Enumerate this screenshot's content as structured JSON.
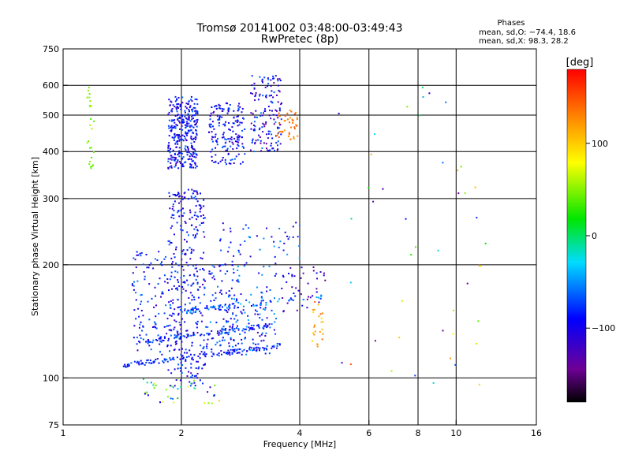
{
  "chart_data": {
    "type": "scatter",
    "title": "Tromsø 20141002 03:48:00-03:49:43",
    "subtitle": "RwPretec (8p)",
    "stats": {
      "heading": "Phases",
      "line1": "mean, sd,O: −74.4, 18.6",
      "line2": "mean, sd,X:  98.3, 28.2"
    },
    "xlabel": "Frequency [MHz]",
    "ylabel": "Stationary phase Virtual Height [km]",
    "xscale": "log",
    "yscale": "log",
    "xlim": [
      1,
      16
    ],
    "ylim": [
      75,
      750
    ],
    "xticks": [
      1,
      2,
      4,
      6,
      8,
      10,
      16
    ],
    "yticks": [
      75,
      100,
      200,
      300,
      400,
      500,
      600,
      750
    ],
    "grid_x": [
      2,
      4,
      6,
      8,
      10
    ],
    "grid_y": [
      100,
      200,
      300,
      400,
      500,
      600
    ],
    "colorbar": {
      "label": "[deg]",
      "range": [
        -180,
        180
      ],
      "ticks": [
        -100,
        0,
        100
      ]
    },
    "point_clusters": [
      {
        "fmin": 1.85,
        "fmax": 2.2,
        "hmin": 360,
        "hmax": 560,
        "n": 320,
        "cmin": -125,
        "cmax": -60
      },
      {
        "fmin": 2.35,
        "fmax": 2.9,
        "hmin": 370,
        "hmax": 540,
        "n": 170,
        "cmin": -125,
        "cmax": -60
      },
      {
        "fmin": 3.0,
        "fmax": 3.6,
        "hmin": 400,
        "hmax": 640,
        "n": 150,
        "cmin": -145,
        "cmax": -50
      },
      {
        "fmin": 3.5,
        "fmax": 4.0,
        "hmin": 430,
        "hmax": 520,
        "n": 40,
        "cmin": 120,
        "cmax": 150
      },
      {
        "fmin": 1.85,
        "fmax": 2.3,
        "hmin": 95,
        "hmax": 320,
        "n": 320,
        "cmin": -125,
        "cmax": -60
      },
      {
        "fmin": 1.5,
        "fmax": 2.0,
        "hmin": 115,
        "hmax": 220,
        "n": 140,
        "cmin": -125,
        "cmax": -55
      },
      {
        "fmin": 2.3,
        "fmax": 2.8,
        "hmin": 115,
        "hmax": 200,
        "n": 110,
        "cmin": -120,
        "cmax": -50
      },
      {
        "fmin": 2.6,
        "fmax": 3.5,
        "hmin": 115,
        "hmax": 175,
        "n": 100,
        "cmin": -120,
        "cmax": -40
      },
      {
        "fmin": 2.5,
        "fmax": 4.0,
        "hmin": 185,
        "hmax": 260,
        "n": 70,
        "cmin": -120,
        "cmax": -40
      },
      {
        "fmin": 3.6,
        "fmax": 4.8,
        "hmin": 150,
        "hmax": 200,
        "n": 35,
        "cmin": -150,
        "cmax": -80
      },
      {
        "fmin": 4.3,
        "fmax": 4.6,
        "hmin": 120,
        "hmax": 160,
        "n": 25,
        "cmin": 90,
        "cmax": 150
      },
      {
        "fmin": 1.15,
        "fmax": 1.2,
        "hmin": 350,
        "hmax": 600,
        "n": 25,
        "cmin": 30,
        "cmax": 60
      },
      {
        "fmin": 5.0,
        "fmax": 12.0,
        "hmin": 95,
        "hmax": 680,
        "n": 45,
        "cmin": -160,
        "cmax": 150
      },
      {
        "fmin": 1.6,
        "fmax": 2.5,
        "hmin": 85,
        "hmax": 100,
        "n": 40,
        "cmin": -120,
        "cmax": 100
      }
    ],
    "point_lines": [
      {
        "f0": 1.42,
        "h0": 108,
        "f1": 3.6,
        "h1": 122,
        "n": 120,
        "cmin": -110,
        "cmax": -60
      },
      {
        "f0": 1.6,
        "h0": 125,
        "f1": 3.4,
        "h1": 138,
        "n": 90,
        "cmin": -110,
        "cmax": -50
      },
      {
        "f0": 2.0,
        "h0": 150,
        "f1": 4.6,
        "h1": 165,
        "n": 70,
        "cmin": -100,
        "cmax": -30
      }
    ]
  }
}
